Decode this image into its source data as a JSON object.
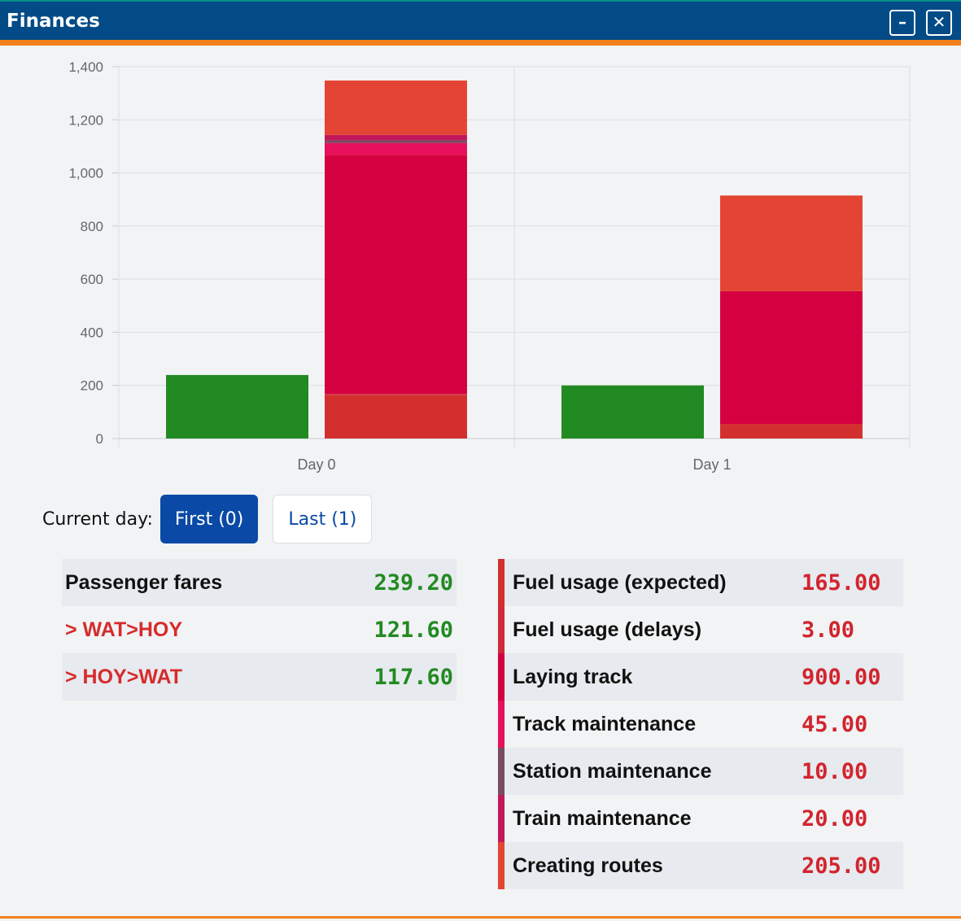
{
  "window": {
    "title": "Finances",
    "minimize_label": "–",
    "close_label": "✕"
  },
  "chart_data": {
    "type": "bar",
    "stacked": true,
    "categories": [
      "Day 0",
      "Day 1"
    ],
    "ylim": [
      0,
      1400
    ],
    "yticks": [
      "0",
      "200",
      "400",
      "600",
      "800",
      "1,000",
      "1,200",
      "1,400"
    ],
    "grid": true,
    "income": {
      "color": "#228a22",
      "values": [
        239.2,
        200
      ]
    },
    "expense_series": [
      {
        "color": "#d32f2f",
        "values": [
          165,
          55
        ]
      },
      {
        "color": "#d22a3b",
        "values": [
          3,
          0
        ]
      },
      {
        "color": "#d5003f",
        "values": [
          900,
          500
        ]
      },
      {
        "color": "#e8105a",
        "values": [
          45,
          0
        ]
      },
      {
        "color": "#7a4a63",
        "values": [
          10,
          0
        ]
      },
      {
        "color": "#c2185b",
        "values": [
          20,
          0
        ]
      },
      {
        "color": "#e44433",
        "values": [
          205,
          360
        ]
      }
    ]
  },
  "day_selector": {
    "label": "Current day:",
    "first_label": "First (0)",
    "last_label": "Last (1)"
  },
  "income": [
    {
      "label": "Passenger fares",
      "value": "239.20",
      "sub": false
    },
    {
      "label": "> WAT>HOY",
      "value": "121.60",
      "sub": true
    },
    {
      "label": "> HOY>WAT",
      "value": "117.60",
      "sub": true
    }
  ],
  "expenses": [
    {
      "label": "Fuel usage (expected)",
      "value": "165.00",
      "color": "#d32f2f"
    },
    {
      "label": "Fuel usage (delays)",
      "value": "3.00",
      "color": "#d22a3b"
    },
    {
      "label": "Laying track",
      "value": "900.00",
      "color": "#d5003f"
    },
    {
      "label": "Track maintenance",
      "value": "45.00",
      "color": "#e8105a"
    },
    {
      "label": "Station maintenance",
      "value": "10.00",
      "color": "#7a4a63"
    },
    {
      "label": "Train maintenance",
      "value": "20.00",
      "color": "#c2185b"
    },
    {
      "label": "Creating routes",
      "value": "205.00",
      "color": "#e44433"
    }
  ]
}
